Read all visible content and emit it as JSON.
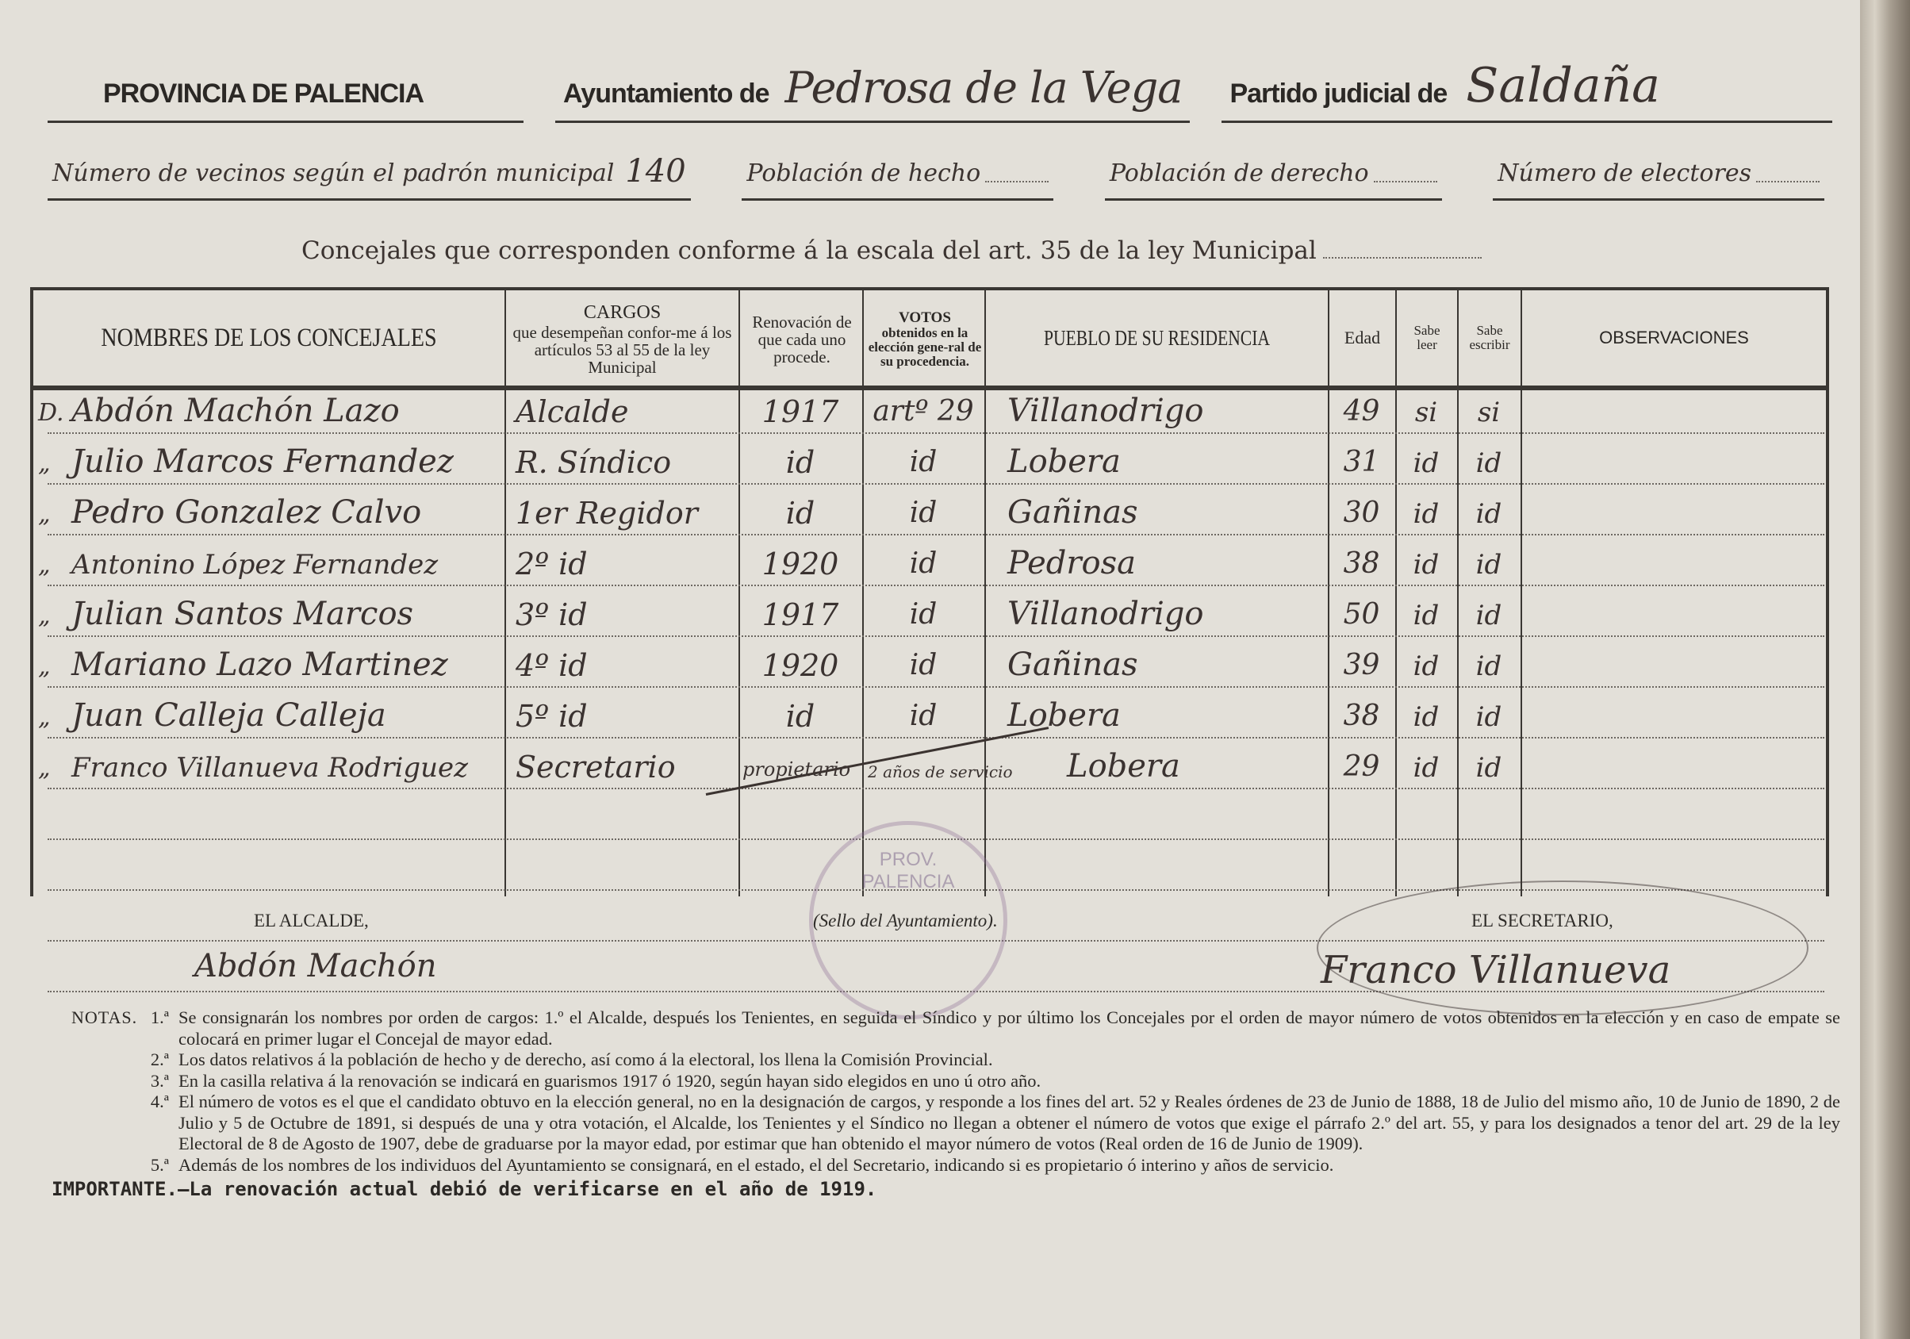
{
  "header": {
    "province": "PROVINCIA DE PALENCIA",
    "ayuntamiento_label": "Ayuntamiento de",
    "ayuntamiento_value": "Pedrosa de la Vega",
    "partido_label": "Partido judicial de",
    "partido_value": "Saldaña"
  },
  "stats": {
    "vecinos_label": "Número de vecinos según el padrón municipal",
    "vecinos_value": "140",
    "hecho_label": "Población de hecho",
    "derecho_label": "Población de derecho",
    "electores_label": "Número de electores"
  },
  "concejales_label": "Concejales que corresponden conforme á la escala del art. 35 de la ley Municipal",
  "table": {
    "headers": {
      "nombres": "NOMBRES DE LOS CONCEJALES",
      "cargos_title": "CARGOS",
      "cargos_sub": "que desempeñan confor-me á los artículos 53 al 55 de la ley Municipal",
      "renovacion": "Renovación de que cada uno procede.",
      "votos_title": "VOTOS",
      "votos_sub": "obtenidos en la elección gene-ral de su procedencia.",
      "pueblo": "PUEBLO DE SU RESIDENCIA",
      "edad": "Edad",
      "leer": "Sabe leer",
      "escribir": "Sabe escribir",
      "observaciones": "OBSERVACIONES"
    },
    "rows": [
      {
        "prefix": "D.",
        "nombre": "Abdón Machón Lazo",
        "cargo": "Alcalde",
        "renovacion": "1917",
        "votos": "artº 29",
        "pueblo": "Villanodrigo",
        "edad": "49",
        "leer": "si",
        "escribir": "si"
      },
      {
        "prefix": "„",
        "nombre": "Julio Marcos Fernandez",
        "cargo": "R. Síndico",
        "renovacion": "id",
        "votos": "id",
        "pueblo": "Lobera",
        "edad": "31",
        "leer": "id",
        "escribir": "id"
      },
      {
        "prefix": "„",
        "nombre": "Pedro Gonzalez Calvo",
        "cargo": "1er Regidor",
        "renovacion": "id",
        "votos": "id",
        "pueblo": "Gañinas",
        "edad": "30",
        "leer": "id",
        "escribir": "id"
      },
      {
        "prefix": "„",
        "nombre": "Antonino López Fernandez",
        "cargo": "2º id",
        "renovacion": "1920",
        "votos": "id",
        "pueblo": "Pedrosa",
        "edad": "38",
        "leer": "id",
        "escribir": "id"
      },
      {
        "prefix": "„",
        "nombre": "Julian Santos Marcos",
        "cargo": "3º id",
        "renovacion": "1917",
        "votos": "id",
        "pueblo": "Villanodrigo",
        "edad": "50",
        "leer": "id",
        "escribir": "id"
      },
      {
        "prefix": "„",
        "nombre": "Mariano Lazo Martinez",
        "cargo": "4º id",
        "renovacion": "1920",
        "votos": "id",
        "pueblo": "Gañinas",
        "edad": "39",
        "leer": "id",
        "escribir": "id"
      },
      {
        "prefix": "„",
        "nombre": "Juan Calleja Calleja",
        "cargo": "5º id",
        "renovacion": "id",
        "votos": "id",
        "pueblo": "Lobera",
        "edad": "38",
        "leer": "id",
        "escribir": "id"
      },
      {
        "prefix": "„",
        "nombre": "Franco Villanueva Rodriguez",
        "cargo": "Secretario",
        "renovacion": "propietario",
        "votos": "2 años de servicio",
        "pueblo": "Lobera",
        "edad": "29",
        "leer": "id",
        "escribir": "id"
      }
    ]
  },
  "signatures": {
    "alcalde_label": "EL ALCALDE,",
    "alcalde_sig": "Abdón Machón",
    "sello_label": "(Sello del Ayuntamiento).",
    "secretario_label": "EL SECRETARIO,",
    "secretario_sig": "Franco Villanueva",
    "stamp_text": "PROV. PALENCIA"
  },
  "notes": {
    "label": "NOTAS.",
    "items": [
      {
        "n": "1.ª",
        "text": "Se consignarán los nombres por orden de cargos: 1.º el Alcalde, después los Tenientes, en seguida el Síndico y por último los Concejales por el orden de mayor número de votos obtenidos en la elección y en caso de empate se colocará en primer lugar el Concejal de mayor edad."
      },
      {
        "n": "2.ª",
        "text": "Los datos relativos á la población de hecho y de derecho, así como á la electoral, los llena la Comisión Provincial."
      },
      {
        "n": "3.ª",
        "text": "En la casilla relativa á la renovación se indicará en guarismos 1917 ó 1920, según hayan sido elegidos en uno ú otro año."
      },
      {
        "n": "4.ª",
        "text": "El número de votos es el que el candidato obtuvo en la elección general, no en la designación de cargos, y responde a los fines del art. 52 y Reales órdenes de 23 de Junio de 1888, 18 de Julio del mismo año, 10 de Junio de 1890, 2 de Julio y 5 de Octubre de 1891, si después de una y otra votación, el Alcalde, los Tenientes y el Síndico no llegan a obtener el número de votos que exige el párrafo 2.º del art. 55, y para los designados a tenor del art. 29 de la ley Electoral de 8 de Agosto de 1907, debe de graduarse por la mayor edad, por estimar que han obtenido el mayor número de votos (Real orden de 16 de Junio de 1909)."
      },
      {
        "n": "5.ª",
        "text": "Además de los nombres de los individuos del Ayuntamiento se consignará, en el estado, el del Secretario, indicando si es propietario ó interino y años de servicio."
      }
    ]
  },
  "important": "IMPORTANTE.—La renovación actual debió de verificarse en el año de 1919."
}
